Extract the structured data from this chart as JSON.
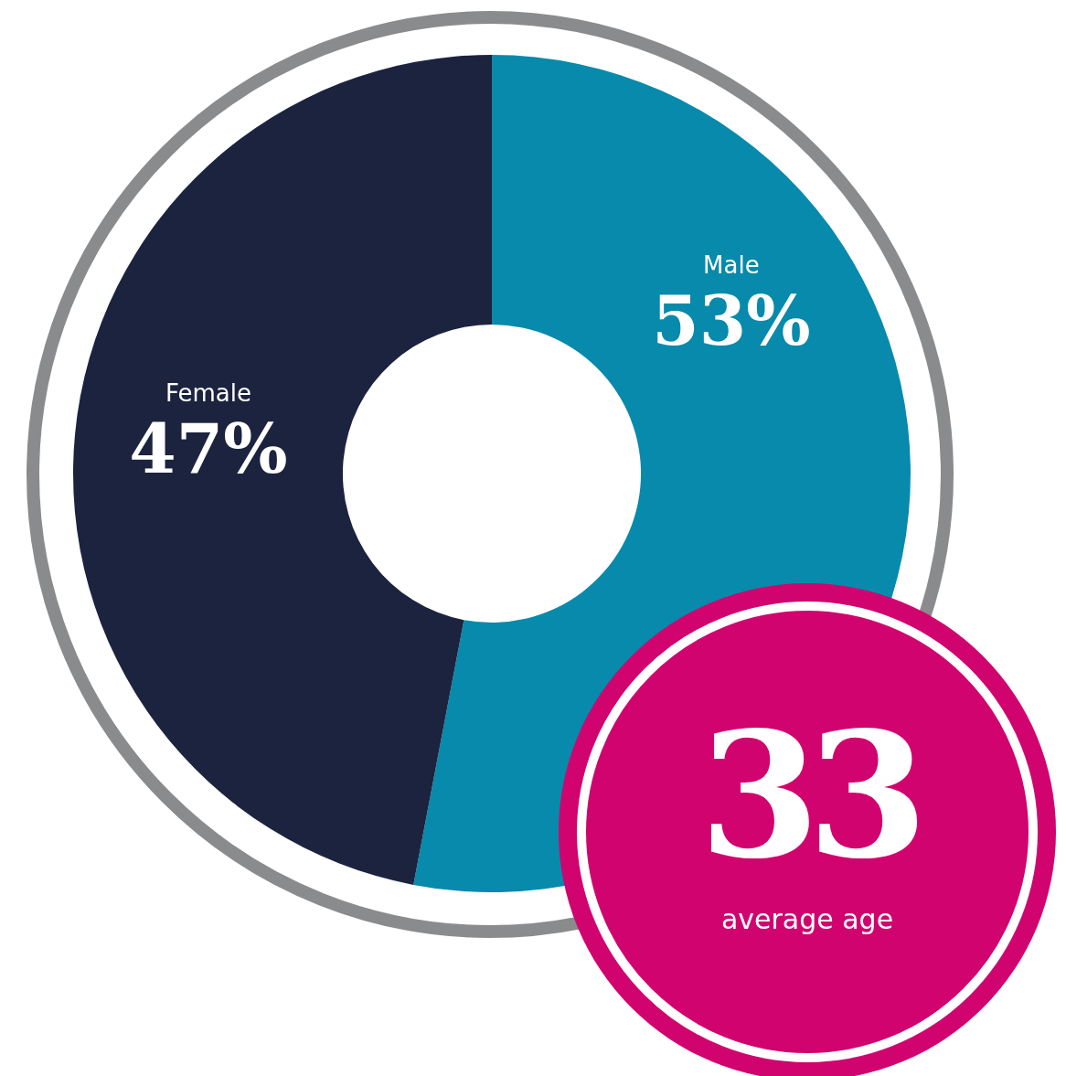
{
  "chart_data": {
    "type": "donut",
    "categories": [
      "Male",
      "Female"
    ],
    "values": [
      53,
      47
    ],
    "value_labels": [
      "53%",
      "47%"
    ],
    "colors": [
      "#078aab",
      "#1b233f"
    ],
    "legend": false,
    "annotations": [
      "33",
      "average age"
    ]
  }
}
